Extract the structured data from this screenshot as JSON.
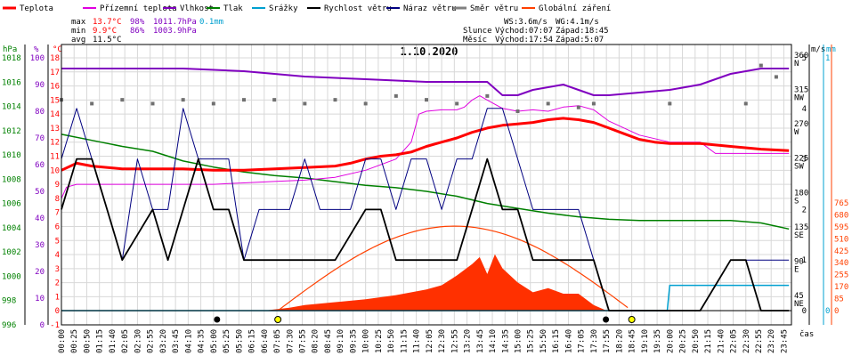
{
  "title": "1.10.2020",
  "legend": [
    {
      "label": "Teplota",
      "color": "#ff0000"
    },
    {
      "label": "Přízemní teplota",
      "color": "#e000e0"
    },
    {
      "label": "Vlhkost",
      "color": "#8000c0"
    },
    {
      "label": "Tlak",
      "color": "#008000"
    },
    {
      "label": "Srážky",
      "color": "#00a0d0"
    },
    {
      "label": "Rychlost větru",
      "color": "#000000"
    },
    {
      "label": "Náraz větru",
      "color": "#000080"
    },
    {
      "label": "Směr větru",
      "color": "#808080"
    },
    {
      "label": "Globální záření",
      "color": "#ff4000"
    }
  ],
  "stats": {
    "max_label": "max",
    "max_temp": "13.7°C",
    "max_hum": "98%",
    "max_press": "1011.7hPa",
    "max_rain": "0.1mm",
    "min_label": "min",
    "min_temp": "9.9°C",
    "min_hum": "86%",
    "min_press": "1003.9hPa",
    "avg_label": "avg",
    "avg_temp": "11.5°C"
  },
  "wind_info": {
    "ws": "WS:3.6m/s",
    "wg": "WG:4.1m/s",
    "sun_label": "Slunce",
    "sun_rise": "Východ:07:07",
    "sun_set": "Západ:18:45",
    "moon_label": "Měsíc",
    "moon_rise": "Východ:17:54",
    "moon_set": "Západ:5:07"
  },
  "axes": {
    "hpa_unit": "hPa",
    "pct_unit": "%",
    "temp_unit": "°C",
    "ms_unit": "m/s",
    "mm_unit": "mm",
    "time_unit": "čas",
    "hpa_ticks": [
      "1018",
      "1016",
      "1014",
      "1012",
      "1010",
      "1008",
      "1006",
      "1004",
      "1002",
      "1000",
      "998",
      "996"
    ],
    "pct_ticks": [
      "100",
      "90",
      "80",
      "70",
      "60",
      "50",
      "40",
      "30",
      "20",
      "10",
      "0"
    ],
    "temp_ticks": [
      "18",
      "17",
      "16",
      "15",
      "14",
      "13",
      "12",
      "11",
      "10",
      "9",
      "8",
      "7",
      "6",
      "5",
      "4",
      "3",
      "2",
      "1",
      "0",
      "-1"
    ],
    "dir_deg_ticks": [
      "360",
      "315",
      "270",
      "225",
      "180",
      "135",
      "90",
      "45"
    ],
    "dir_name_ticks": [
      "N",
      "NW",
      "W",
      "SW",
      "S",
      "SE",
      "E",
      "NE"
    ],
    "ms_ticks": [
      "5",
      "4",
      "3",
      "2",
      "1",
      "0"
    ],
    "mm_ticks": [
      "1",
      "0"
    ],
    "rad_ticks": [
      "765",
      "680",
      "595",
      "510",
      "425",
      "340",
      "255",
      "170",
      "85",
      "0"
    ],
    "time_ticks": [
      "00:00",
      "00:25",
      "00:50",
      "01:15",
      "01:40",
      "02:05",
      "02:30",
      "02:55",
      "03:20",
      "03:45",
      "04:10",
      "04:35",
      "05:00",
      "05:25",
      "05:50",
      "06:15",
      "06:40",
      "07:05",
      "07:30",
      "07:55",
      "08:20",
      "08:45",
      "09:10",
      "09:35",
      "10:00",
      "10:25",
      "10:50",
      "11:15",
      "11:40",
      "12:05",
      "12:30",
      "12:55",
      "13:20",
      "13:45",
      "14:10",
      "14:35",
      "15:00",
      "15:25",
      "15:50",
      "16:15",
      "16:40",
      "17:05",
      "17:30",
      "17:55",
      "18:20",
      "18:45",
      "19:10",
      "19:35",
      "20:00",
      "20:25",
      "20:50",
      "21:15",
      "21:40",
      "22:05",
      "22:30",
      "22:55",
      "23:20",
      "23:45"
    ]
  },
  "chart_data": {
    "type": "line",
    "title": "1.10.2020",
    "x_unit": "čas",
    "series": [
      {
        "name": "Teplota",
        "unit": "°C",
        "color": "#ff0000",
        "x": [
          "00:00",
          "00:30",
          "01:00",
          "02:00",
          "03:00",
          "04:00",
          "05:00",
          "06:00",
          "07:00",
          "08:00",
          "09:00",
          "09:30",
          "10:00",
          "10:30",
          "11:00",
          "11:30",
          "12:00",
          "12:30",
          "13:00",
          "13:30",
          "14:00",
          "14:30",
          "15:00",
          "15:30",
          "16:00",
          "16:30",
          "17:00",
          "17:30",
          "18:00",
          "18:30",
          "19:00",
          "19:30",
          "20:00",
          "20:30",
          "21:00",
          "22:00",
          "23:00",
          "23:55"
        ],
        "values": [
          10.0,
          10.5,
          10.3,
          10.1,
          10.1,
          10.1,
          10.0,
          10.0,
          10.1,
          10.2,
          10.3,
          10.5,
          10.8,
          11.0,
          11.1,
          11.3,
          11.7,
          12.0,
          12.3,
          12.7,
          13.0,
          13.2,
          13.3,
          13.4,
          13.6,
          13.7,
          13.6,
          13.4,
          13.0,
          12.6,
          12.2,
          12.0,
          11.9,
          11.9,
          11.9,
          11.7,
          11.5,
          11.4
        ]
      },
      {
        "name": "Přízemní teplota",
        "unit": "°C",
        "color": "#e000e0",
        "x": [
          "00:00",
          "00:10",
          "00:30",
          "01:00",
          "02:00",
          "03:00",
          "04:00",
          "05:00",
          "06:00",
          "07:00",
          "08:00",
          "09:00",
          "10:00",
          "11:00",
          "11:30",
          "11:45",
          "12:00",
          "12:30",
          "13:00",
          "13:15",
          "13:30",
          "13:45",
          "14:00",
          "14:30",
          "15:00",
          "15:30",
          "16:00",
          "16:30",
          "17:00",
          "17:30",
          "18:00",
          "19:00",
          "20:00",
          "21:00",
          "21:30",
          "22:00",
          "23:55"
        ],
        "values": [
          8.0,
          8.8,
          9.0,
          9.0,
          9.0,
          9.0,
          9.0,
          9.0,
          9.1,
          9.2,
          9.3,
          9.5,
          10.0,
          10.8,
          12.0,
          14.0,
          14.2,
          14.3,
          14.3,
          14.5,
          15.0,
          15.3,
          15.0,
          14.4,
          14.2,
          14.3,
          14.2,
          14.5,
          14.6,
          14.3,
          13.5,
          12.5,
          12.0,
          12.0,
          11.2,
          11.2,
          11.2
        ]
      },
      {
        "name": "Vlhkost",
        "unit": "%",
        "color": "#8000c0",
        "x": [
          "00:00",
          "00:30",
          "02:00",
          "04:00",
          "06:00",
          "08:00",
          "10:00",
          "12:00",
          "13:00",
          "13:30",
          "14:00",
          "14:30",
          "15:00",
          "15:30",
          "16:00",
          "16:30",
          "17:00",
          "17:30",
          "18:00",
          "19:00",
          "20:00",
          "21:00",
          "22:00",
          "23:00",
          "23:55"
        ],
        "values": [
          96,
          96,
          96,
          96,
          95,
          93,
          92,
          91,
          91,
          91,
          91,
          86,
          86,
          88,
          89,
          90,
          88,
          86,
          86,
          87,
          88,
          90,
          94,
          96,
          96
        ]
      },
      {
        "name": "Tlak",
        "unit": "hPa",
        "color": "#008000",
        "x": [
          "00:00",
          "01:00",
          "02:00",
          "03:00",
          "04:00",
          "05:00",
          "06:00",
          "07:00",
          "08:00",
          "09:00",
          "10:00",
          "11:00",
          "12:00",
          "13:00",
          "14:00",
          "15:00",
          "16:00",
          "17:00",
          "18:00",
          "19:00",
          "20:00",
          "21:00",
          "22:00",
          "23:00",
          "23:55"
        ],
        "values": [
          1011.7,
          1011.2,
          1010.7,
          1010.3,
          1009.5,
          1009.0,
          1008.6,
          1008.3,
          1008.1,
          1007.8,
          1007.5,
          1007.3,
          1007.0,
          1006.6,
          1006.0,
          1005.6,
          1005.2,
          1004.9,
          1004.7,
          1004.6,
          1004.6,
          1004.6,
          1004.6,
          1004.4,
          1003.9
        ]
      },
      {
        "name": "Rychlost větru",
        "unit": "m/s",
        "color": "#000000",
        "x": [
          "00:00",
          "00:30",
          "01:00",
          "01:30",
          "02:00",
          "03:00",
          "03:30",
          "04:00",
          "04:30",
          "05:00",
          "05:30",
          "06:00",
          "06:30",
          "07:00",
          "08:00",
          "09:00",
          "10:00",
          "10:30",
          "11:00",
          "12:00",
          "13:00",
          "13:30",
          "14:00",
          "14:30",
          "15:00",
          "15:30",
          "16:00",
          "16:30",
          "17:00",
          "17:30",
          "18:00",
          "18:30",
          "19:00",
          "19:30",
          "20:00",
          "21:00",
          "22:00",
          "22:30",
          "23:00",
          "23:55"
        ],
        "values": [
          2,
          3,
          3,
          2,
          1,
          2,
          1,
          2,
          3,
          2,
          2,
          1,
          1,
          1,
          1,
          1,
          2,
          2,
          1,
          1,
          1,
          2,
          3,
          2,
          2,
          1,
          1,
          1,
          1,
          1,
          0,
          0,
          0,
          0,
          0,
          0,
          1,
          1,
          0,
          0
        ]
      },
      {
        "name": "Náraz větru",
        "unit": "m/s",
        "color": "#000080",
        "x": [
          "00:00",
          "00:30",
          "01:00",
          "01:30",
          "02:00",
          "02:30",
          "03:00",
          "03:30",
          "04:00",
          "04:30",
          "05:00",
          "05:30",
          "06:00",
          "06:30",
          "07:00",
          "07:30",
          "08:00",
          "08:30",
          "09:00",
          "09:30",
          "10:00",
          "10:30",
          "11:00",
          "11:30",
          "12:00",
          "12:30",
          "13:00",
          "13:30",
          "14:00",
          "14:30",
          "15:00",
          "15:30",
          "16:00",
          "16:30",
          "17:00",
          "17:30",
          "18:00",
          "18:30",
          "19:00",
          "19:30",
          "20:00",
          "21:00",
          "22:00",
          "22:30",
          "23:00",
          "23:55"
        ],
        "values": [
          3,
          4,
          3,
          2,
          1,
          3,
          2,
          2,
          4,
          3,
          3,
          3,
          1,
          2,
          2,
          2,
          3,
          2,
          2,
          2,
          3,
          3,
          2,
          3,
          3,
          2,
          3,
          3,
          4,
          4,
          3,
          2,
          2,
          2,
          2,
          1,
          0,
          0,
          0,
          0,
          0,
          0,
          1,
          1,
          1,
          1
        ]
      },
      {
        "name": "Srážky",
        "unit": "mm",
        "color": "#00a0d0",
        "x": [
          "00:00",
          "19:55",
          "20:00",
          "23:55"
        ],
        "values": [
          0.0,
          0.0,
          0.1,
          0.1
        ]
      },
      {
        "name": "Globální záření",
        "unit": "W/m2",
        "color": "#ff4000",
        "x": [
          "06:40",
          "07:30",
          "08:00",
          "09:00",
          "10:00",
          "11:00",
          "12:00",
          "12:30",
          "13:00",
          "13:30",
          "13:45",
          "14:00",
          "14:15",
          "14:30",
          "15:00",
          "15:30",
          "16:00",
          "16:30",
          "17:00",
          "17:30",
          "17:55"
        ],
        "values": [
          0,
          20,
          40,
          60,
          80,
          110,
          150,
          180,
          250,
          330,
          380,
          260,
          400,
          300,
          200,
          130,
          160,
          120,
          120,
          40,
          0
        ]
      },
      {
        "name": "Směr větru",
        "unit": "°",
        "color": "#808080",
        "x": [
          "00:00",
          "01:00",
          "02:00",
          "03:00",
          "04:00",
          "05:00",
          "06:00",
          "07:00",
          "08:00",
          "09:00",
          "10:00",
          "11:00",
          "12:00",
          "13:00",
          "14:00",
          "15:00",
          "16:00",
          "17:00",
          "17:30",
          "20:00",
          "22:30",
          "23:00",
          "23:30"
        ],
        "values": [
          305,
          300,
          305,
          300,
          305,
          300,
          305,
          305,
          300,
          305,
          300,
          310,
          305,
          300,
          310,
          290,
          300,
          295,
          300,
          300,
          300,
          350,
          335
        ]
      }
    ]
  }
}
